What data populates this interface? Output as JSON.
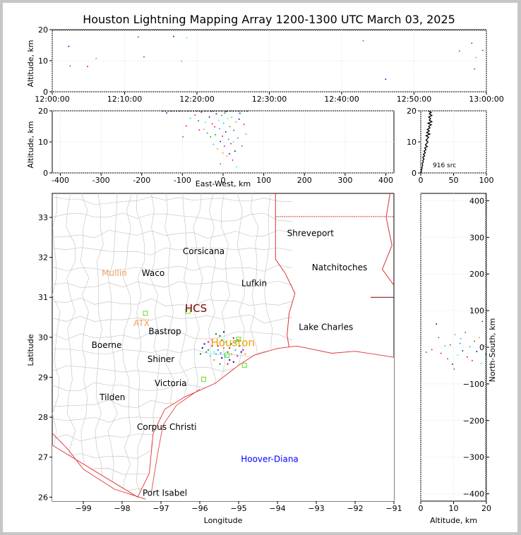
{
  "title": "Houston Lightning Mapping Array 1200-1300 UTC March 03, 2025",
  "chart_data": [
    {
      "id": "time_height",
      "type": "scatter",
      "xlabel": "",
      "ylabel": "Altitude, km",
      "x_ticks": [
        "12:00:00",
        "12:10:00",
        "12:20:00",
        "12:30:00",
        "12:40:00",
        "12:50:00",
        "13:00:00"
      ],
      "xlim_minutes": [
        0,
        60
      ],
      "ylim": [
        0,
        20
      ],
      "y_ticks": [
        0,
        10,
        20
      ],
      "grid": true,
      "points": [
        [
          2.2,
          14.8
        ],
        [
          2.4,
          8.5
        ],
        [
          4.8,
          8.3
        ],
        [
          6.0,
          10.9
        ],
        [
          11.8,
          17.8
        ],
        [
          12.6,
          11.4
        ],
        [
          16.7,
          18.0
        ],
        [
          17.8,
          10.0
        ],
        [
          18.5,
          17.5
        ],
        [
          42.9,
          16.6
        ],
        [
          46.0,
          4.2
        ],
        [
          56.2,
          13.3
        ],
        [
          57.9,
          15.8
        ],
        [
          58.5,
          11.2
        ],
        [
          58.3,
          7.5
        ],
        [
          59.4,
          13.5
        ]
      ]
    },
    {
      "id": "ew_height",
      "type": "scatter",
      "xlabel": "East-West, km",
      "ylabel": "Altitude, km",
      "xlim": [
        -420,
        420
      ],
      "x_ticks": [
        -400,
        -300,
        -200,
        -100,
        0,
        100,
        200,
        300,
        400
      ],
      "ylim": [
        0,
        20
      ],
      "y_ticks": [
        0,
        10,
        20
      ],
      "grid": true,
      "points": [
        [
          -140,
          19.5
        ],
        [
          -100,
          11.8
        ],
        [
          -92,
          15.3
        ],
        [
          -82,
          17.8
        ],
        [
          -70,
          18.8
        ],
        [
          -62,
          17.0
        ],
        [
          -55,
          19.8
        ],
        [
          -48,
          14.2
        ],
        [
          -45,
          16.5
        ],
        [
          -40,
          13.0
        ],
        [
          -35,
          18.2
        ],
        [
          -32,
          11.8
        ],
        [
          -28,
          16.0
        ],
        [
          -25,
          9.4
        ],
        [
          -22,
          15.0
        ],
        [
          -20,
          12.5
        ],
        [
          -18,
          19.2
        ],
        [
          -15,
          7.9
        ],
        [
          -12,
          17.1
        ],
        [
          -10,
          14.4
        ],
        [
          -8,
          10.3
        ],
        [
          -5,
          18.7
        ],
        [
          -3,
          12.0
        ],
        [
          0,
          16.2
        ],
        [
          2,
          8.8
        ],
        [
          3,
          19.5
        ],
        [
          5,
          13.4
        ],
        [
          8,
          5.6
        ],
        [
          10,
          17.7
        ],
        [
          12,
          11.0
        ],
        [
          14,
          6.3
        ],
        [
          15,
          15.1
        ],
        [
          18,
          9.6
        ],
        [
          20,
          18.1
        ],
        [
          22,
          4.3
        ],
        [
          25,
          13.9
        ],
        [
          28,
          7.2
        ],
        [
          30,
          16.6
        ],
        [
          32,
          2.1
        ],
        [
          35,
          11.4
        ],
        [
          40,
          19.4
        ],
        [
          45,
          8.9
        ],
        [
          50,
          15.8
        ],
        [
          55,
          12.7
        ],
        [
          -60,
          14.0
        ],
        [
          -30,
          20.0
        ],
        [
          6,
          20.0
        ],
        [
          -2,
          6.6
        ],
        [
          24,
          10.2
        ],
        [
          -8,
          3.1
        ],
        [
          38,
          17.5
        ]
      ]
    },
    {
      "id": "height_hist",
      "type": "line",
      "xlabel": "",
      "ylabel": "",
      "xlim": [
        0,
        100
      ],
      "x_ticks": [
        0,
        50,
        100
      ],
      "ylim": [
        0,
        20
      ],
      "y_ticks": [
        0,
        10,
        20
      ],
      "annotation": "916 src",
      "grid": true,
      "profile": [
        [
          19.8,
          12
        ],
        [
          19.5,
          16
        ],
        [
          19.0,
          13
        ],
        [
          18.5,
          17
        ],
        [
          18.0,
          12
        ],
        [
          17.5,
          15
        ],
        [
          17.0,
          13
        ],
        [
          16.5,
          17
        ],
        [
          16.0,
          11
        ],
        [
          15.5,
          16
        ],
        [
          15.0,
          12
        ],
        [
          14.5,
          14
        ],
        [
          14.0,
          10
        ],
        [
          13.5,
          13
        ],
        [
          13.0,
          9
        ],
        [
          12.5,
          14
        ],
        [
          12.0,
          8
        ],
        [
          11.5,
          12
        ],
        [
          11.0,
          10
        ],
        [
          10.5,
          8
        ],
        [
          10.0,
          11
        ],
        [
          9.5,
          9
        ],
        [
          9.0,
          7
        ],
        [
          8.5,
          10
        ],
        [
          8.0,
          6
        ],
        [
          7.5,
          8
        ],
        [
          7.0,
          5
        ],
        [
          6.5,
          7
        ],
        [
          6.0,
          4
        ],
        [
          5.5,
          6
        ],
        [
          5.0,
          3
        ],
        [
          4.5,
          5
        ],
        [
          4.0,
          3
        ],
        [
          3.5,
          4
        ],
        [
          3.0,
          2
        ],
        [
          2.5,
          3
        ],
        [
          2.0,
          2
        ],
        [
          1.5,
          2
        ],
        [
          1.0,
          1
        ],
        [
          0.5,
          1
        ],
        [
          0.0,
          0
        ]
      ]
    },
    {
      "id": "plan_view",
      "type": "scatter",
      "xlabel": "Longitude",
      "ylabel": "Latitude",
      "xlim": [
        -99.8,
        -91.0
      ],
      "ylim": [
        25.9,
        33.6
      ],
      "x_ticks": [
        -99,
        -98,
        -97,
        -96,
        -95,
        -94,
        -93,
        -92,
        -91
      ],
      "y_ticks": [
        26,
        27,
        28,
        29,
        30,
        31,
        32,
        33
      ],
      "cities": [
        {
          "name": "Shreveport",
          "lon": -93.15,
          "lat": 32.6,
          "color": "#000000"
        },
        {
          "name": "Corsicana",
          "lon": -95.9,
          "lat": 32.15,
          "color": "#000000"
        },
        {
          "name": "Natchitoches",
          "lon": -92.4,
          "lat": 31.75,
          "color": "#000000"
        },
        {
          "name": "Mullin",
          "lon": -98.2,
          "lat": 31.6,
          "color": "#f0a060"
        },
        {
          "name": "Waco",
          "lon": -97.2,
          "lat": 31.6,
          "color": "#000000"
        },
        {
          "name": "Lufkin",
          "lon": -94.6,
          "lat": 31.35,
          "color": "#000000"
        },
        {
          "name": "HCS",
          "lon": -96.1,
          "lat": 30.7,
          "color": "#800000"
        },
        {
          "name": "ATX",
          "lon": -97.5,
          "lat": 30.35,
          "color": "#f0a060"
        },
        {
          "name": "Lake Charles",
          "lon": -92.75,
          "lat": 30.25,
          "color": "#000000"
        },
        {
          "name": "Bastrop",
          "lon": -96.9,
          "lat": 30.15,
          "color": "#000000"
        },
        {
          "name": "Houston",
          "lon": -95.15,
          "lat": 29.85,
          "color": "#f0a000"
        },
        {
          "name": "Boerne",
          "lon": -98.4,
          "lat": 29.8,
          "color": "#000000"
        },
        {
          "name": "Shiner",
          "lon": -97.0,
          "lat": 29.45,
          "color": "#000000"
        },
        {
          "name": "Victoria",
          "lon": -96.75,
          "lat": 28.85,
          "color": "#000000"
        },
        {
          "name": "Tilden",
          "lon": -98.25,
          "lat": 28.5,
          "color": "#000000"
        },
        {
          "name": "Corpus Christi",
          "lon": -96.85,
          "lat": 27.75,
          "color": "#000000"
        },
        {
          "name": "Hoover-Diana",
          "lon": -94.2,
          "lat": 26.95,
          "color": "#0000ff"
        },
        {
          "name": "Port Isabel",
          "lon": -96.9,
          "lat": 26.1,
          "color": "#000000"
        }
      ],
      "stations": [
        [
          -97.4,
          30.6
        ],
        [
          -96.3,
          30.65
        ],
        [
          -95.0,
          29.95
        ],
        [
          -94.85,
          29.3
        ],
        [
          -95.9,
          28.95
        ],
        [
          -95.3,
          29.55
        ]
      ],
      "sources": [
        [
          -95.9,
          29.85
        ],
        [
          -95.8,
          29.7
        ],
        [
          -95.7,
          29.95
        ],
        [
          -95.6,
          29.6
        ],
        [
          -95.55,
          29.8
        ],
        [
          -95.5,
          30.05
        ],
        [
          -95.45,
          29.5
        ],
        [
          -95.4,
          29.75
        ],
        [
          -95.35,
          29.9
        ],
        [
          -95.3,
          29.65
        ],
        [
          -95.25,
          29.45
        ],
        [
          -95.2,
          29.85
        ],
        [
          -95.15,
          30.0
        ],
        [
          -95.1,
          29.7
        ],
        [
          -95.05,
          29.55
        ],
        [
          -95.0,
          29.8
        ],
        [
          -94.95,
          29.65
        ],
        [
          -95.65,
          29.45
        ],
        [
          -95.75,
          29.55
        ],
        [
          -95.85,
          29.65
        ],
        [
          -95.95,
          29.75
        ],
        [
          -95.5,
          29.35
        ],
        [
          -95.3,
          29.35
        ],
        [
          -95.1,
          29.9
        ],
        [
          -94.9,
          29.7
        ],
        [
          -95.6,
          30.1
        ],
        [
          -95.4,
          30.15
        ],
        [
          -95.2,
          29.6
        ],
        [
          -95.35,
          29.55
        ],
        [
          -95.55,
          29.7
        ],
        [
          -95.7,
          29.8
        ],
        [
          -95.45,
          29.95
        ],
        [
          -95.25,
          29.75
        ],
        [
          -95.05,
          29.95
        ],
        [
          -95.8,
          29.9
        ],
        [
          -96.0,
          29.6
        ],
        [
          -95.15,
          29.4
        ],
        [
          -94.85,
          29.6
        ],
        [
          -95.65,
          29.65
        ],
        [
          -95.48,
          29.62
        ]
      ]
    },
    {
      "id": "height_ns",
      "type": "scatter",
      "xlabel": "Altitude, km",
      "ylabel": "North-South, km",
      "xlim": [
        0,
        20
      ],
      "x_ticks": [
        0,
        10,
        20
      ],
      "ylim": [
        -420,
        420
      ],
      "y_ticks": [
        -400,
        -300,
        -200,
        -100,
        0,
        100,
        200,
        300,
        400
      ],
      "grid": true,
      "points": [
        [
          4.6,
          65
        ],
        [
          5.3,
          28
        ],
        [
          6.0,
          -15
        ],
        [
          7.2,
          6
        ],
        [
          8.0,
          -30
        ],
        [
          8.8,
          8
        ],
        [
          9.5,
          -45
        ],
        [
          10.3,
          36
        ],
        [
          11.1,
          -20
        ],
        [
          11.8,
          12
        ],
        [
          12.6,
          -8
        ],
        [
          13.4,
          42
        ],
        [
          14.0,
          -25
        ],
        [
          14.8,
          3
        ],
        [
          15.5,
          -35
        ],
        [
          16.2,
          18
        ],
        [
          16.9,
          -10
        ],
        [
          17.6,
          28
        ],
        [
          18.3,
          -42
        ],
        [
          19.1,
          5
        ],
        [
          19.7,
          -18
        ],
        [
          1.5,
          -12
        ],
        [
          3.2,
          -5
        ],
        [
          12.0,
          25
        ],
        [
          10.0,
          -58
        ],
        [
          18.6,
          72
        ]
      ]
    }
  ]
}
